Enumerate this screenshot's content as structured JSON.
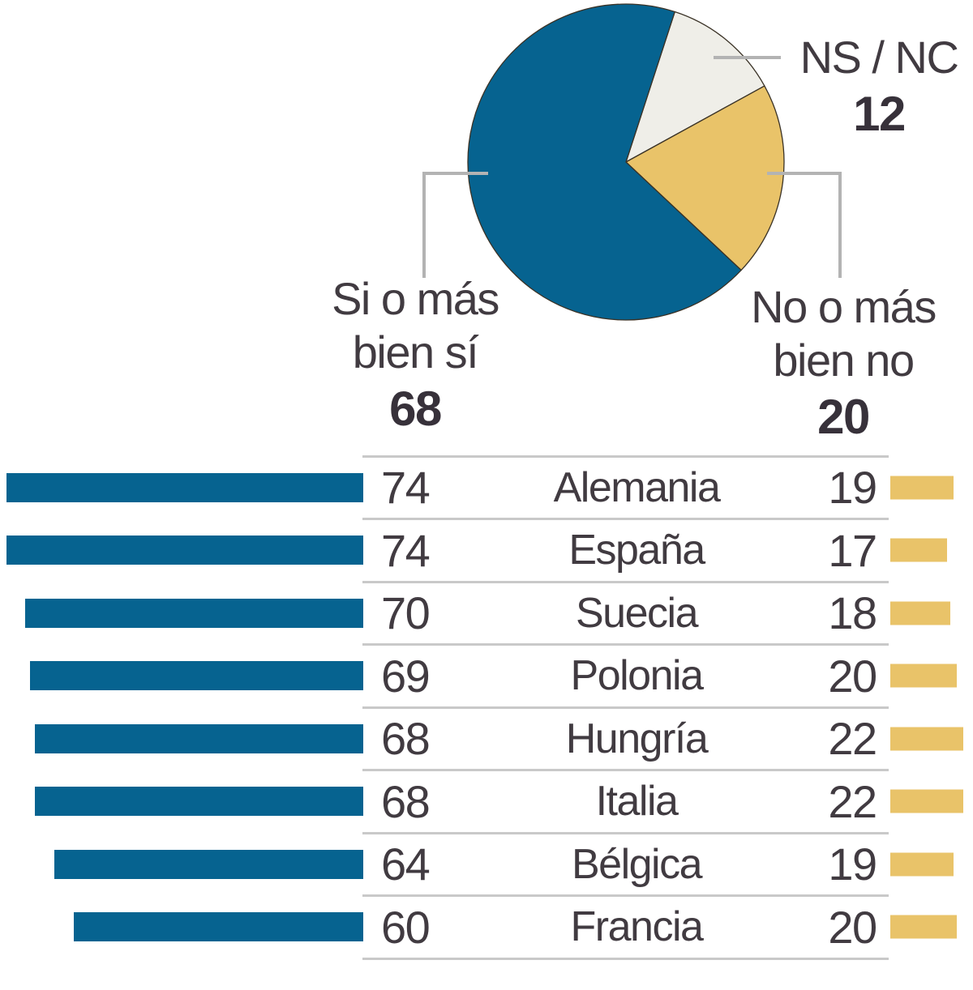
{
  "chart_data": {
    "type": "pie",
    "title": "",
    "pie": {
      "start_angle_deg_clockwise_from_north": 18,
      "slices": [
        {
          "label": "NS / NC",
          "value": 12,
          "color": "#efeee8"
        },
        {
          "label": "No o más bien no",
          "value": 20,
          "color": "#e9c369"
        },
        {
          "label": "Si o más bien sí",
          "value": 68,
          "color": "#066390"
        }
      ]
    },
    "country_bars": {
      "type": "bar",
      "orientation": "horizontal",
      "categories": [
        "Alemania",
        "España",
        "Suecia",
        "Polonia",
        "Hungría",
        "Italia",
        "Bélgica",
        "Francia"
      ],
      "series": [
        {
          "name": "Si o más bien sí",
          "values": [
            74,
            74,
            70,
            69,
            68,
            68,
            64,
            60
          ],
          "color": "#066390",
          "align": "right"
        },
        {
          "name": "No o más bien no",
          "values": [
            19,
            17,
            18,
            20,
            22,
            22,
            19,
            20
          ],
          "color": "#e9c369",
          "align": "left"
        }
      ]
    }
  },
  "labels": {
    "si": {
      "line1": "Si o más",
      "line2": "bien sí",
      "value": "68"
    },
    "ns": {
      "line1": "NS / NC",
      "value": "12"
    },
    "no": {
      "line1": "No o más",
      "line2": "bien no",
      "value": "20"
    }
  },
  "colors": {
    "blue": "#066390",
    "gold": "#e9c369",
    "offwhite": "#efeee8",
    "slice_stroke": "#3a3226",
    "leader_line": "#b3b3b3",
    "divider": "#c9c9c9",
    "text": "#413b41",
    "value": "#37313a"
  }
}
